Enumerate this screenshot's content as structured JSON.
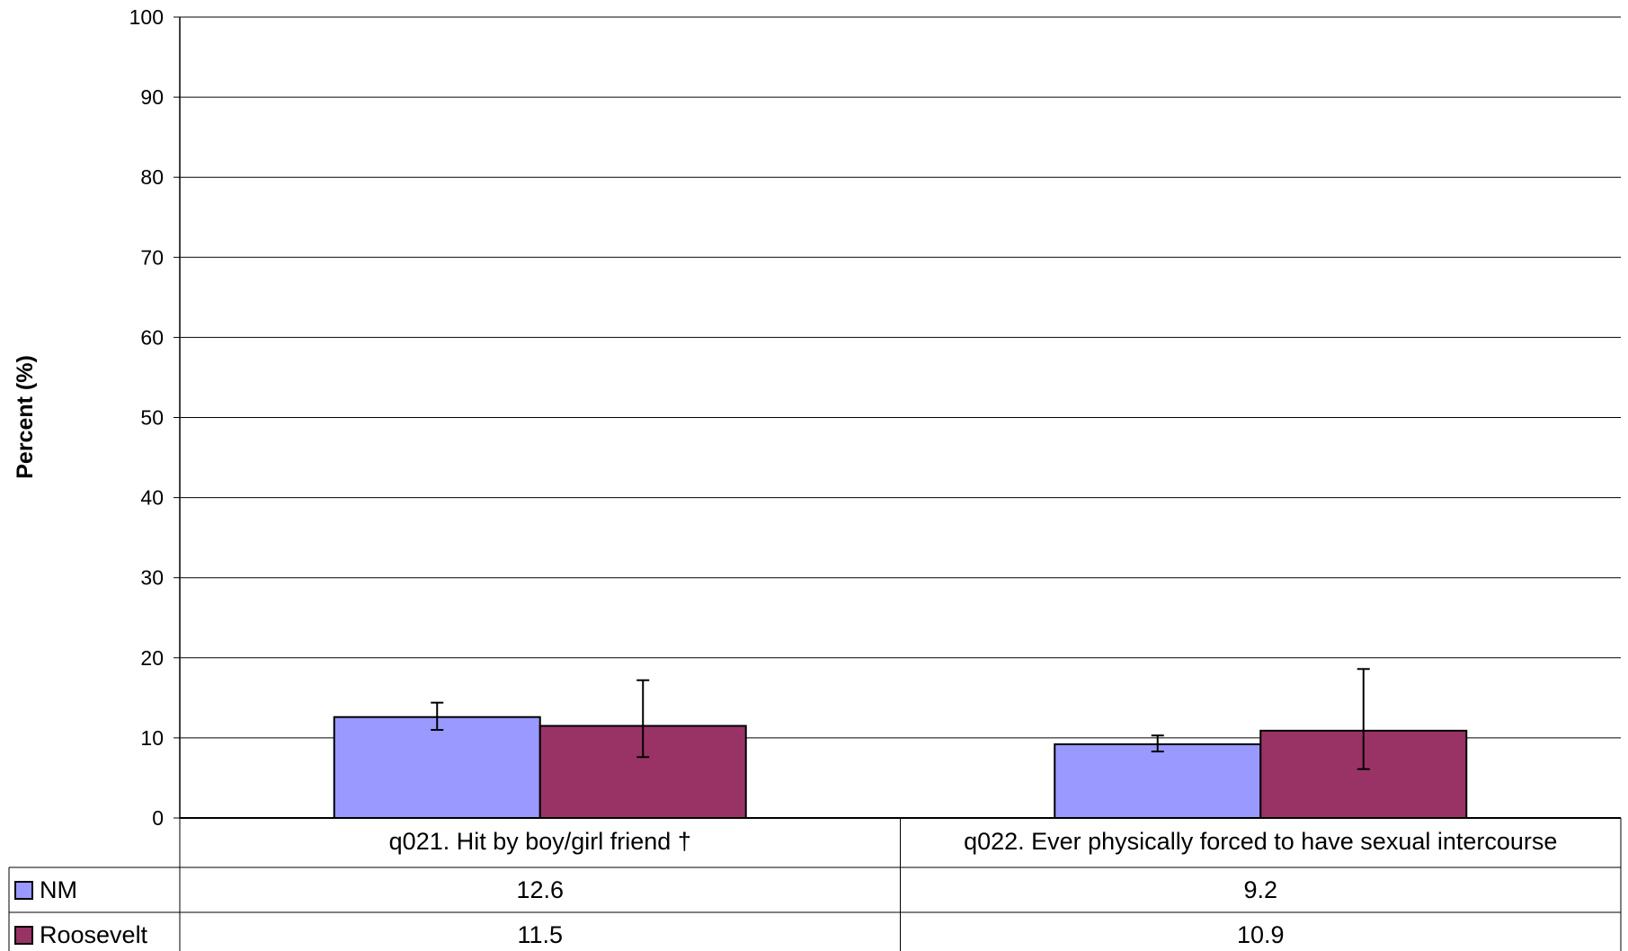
{
  "chart_data": {
    "type": "bar",
    "title": "",
    "xlabel": "",
    "ylabel": "Percent (%)",
    "ylim": [
      0,
      100
    ],
    "yticks": [
      0,
      10,
      20,
      30,
      40,
      50,
      60,
      70,
      80,
      90,
      100
    ],
    "grid": true,
    "categories": [
      "q021. Hit by boy/girl friend †",
      "q022. Ever physically forced to have sexual intercourse"
    ],
    "series": [
      {
        "name": "NM",
        "color": "#9999ff",
        "values": [
          12.6,
          9.2
        ],
        "error_low": [
          11.0,
          8.3
        ],
        "error_high": [
          14.4,
          10.3
        ],
        "value_labels": [
          "12.6",
          "9.2"
        ]
      },
      {
        "name": "Roosevelt",
        "color": "#993366",
        "values": [
          11.5,
          10.9
        ],
        "error_low": [
          7.6,
          6.1
        ],
        "error_high": [
          17.2,
          18.6
        ],
        "value_labels": [
          "11.5",
          "10.9"
        ]
      }
    ],
    "legend": "data-table"
  }
}
